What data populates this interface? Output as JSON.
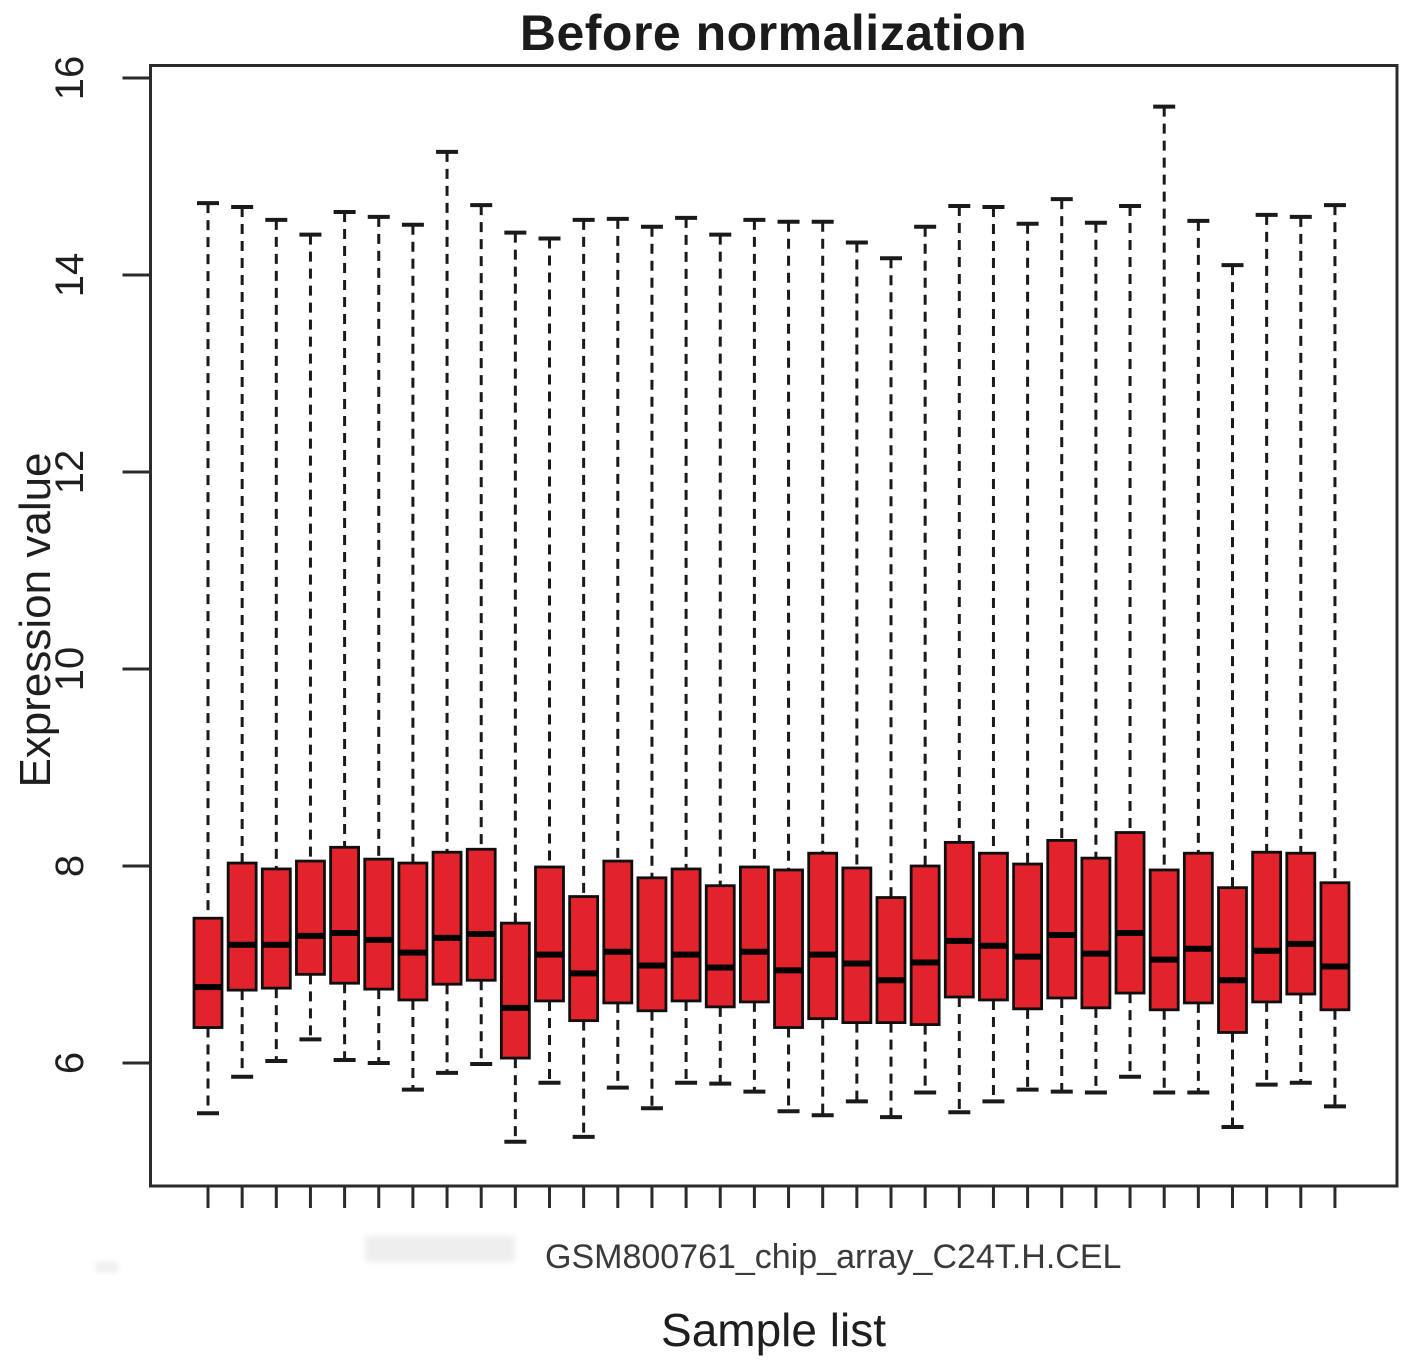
{
  "chart_data": {
    "type": "boxplot",
    "title": "Before normalization",
    "xlabel": "Sample list",
    "ylabel": "Expression value",
    "x_tick_label": "GSM800761_chip_array_C24T.H.CEL",
    "ylim": [
      4.8,
      16.2
    ],
    "yticks": [
      6,
      8,
      10,
      12,
      14,
      16
    ],
    "grid": "off",
    "legend": "none",
    "n_boxes": 34,
    "box_color": "#e2232b",
    "median_color": "#000000",
    "whisker_style": "dashed",
    "boxes": [
      {
        "low": 5.49,
        "q1": 6.36,
        "median": 6.77,
        "q3": 7.47,
        "high": 14.73
      },
      {
        "low": 5.86,
        "q1": 6.74,
        "median": 7.2,
        "q3": 8.03,
        "high": 14.69
      },
      {
        "low": 6.02,
        "q1": 6.76,
        "median": 7.2,
        "q3": 7.97,
        "high": 14.56
      },
      {
        "low": 6.24,
        "q1": 6.9,
        "median": 7.29,
        "q3": 8.05,
        "high": 14.41
      },
      {
        "low": 6.03,
        "q1": 6.81,
        "median": 7.32,
        "q3": 8.19,
        "high": 14.64
      },
      {
        "low": 6.0,
        "q1": 6.75,
        "median": 7.25,
        "q3": 8.07,
        "high": 14.59
      },
      {
        "low": 5.73,
        "q1": 6.64,
        "median": 7.12,
        "q3": 8.03,
        "high": 14.51
      },
      {
        "low": 5.9,
        "q1": 6.8,
        "median": 7.27,
        "q3": 8.14,
        "high": 15.25
      },
      {
        "low": 5.99,
        "q1": 6.84,
        "median": 7.31,
        "q3": 8.17,
        "high": 14.71
      },
      {
        "low": 5.2,
        "q1": 6.05,
        "median": 6.56,
        "q3": 7.42,
        "high": 14.43
      },
      {
        "low": 5.8,
        "q1": 6.63,
        "median": 7.1,
        "q3": 7.99,
        "high": 14.37
      },
      {
        "low": 5.25,
        "q1": 6.43,
        "median": 6.91,
        "q3": 7.69,
        "high": 14.56
      },
      {
        "low": 5.75,
        "q1": 6.61,
        "median": 7.13,
        "q3": 8.05,
        "high": 14.57
      },
      {
        "low": 5.54,
        "q1": 6.53,
        "median": 6.99,
        "q3": 7.88,
        "high": 14.49
      },
      {
        "low": 5.8,
        "q1": 6.63,
        "median": 7.1,
        "q3": 7.97,
        "high": 14.58
      },
      {
        "low": 5.79,
        "q1": 6.57,
        "median": 6.97,
        "q3": 7.8,
        "high": 14.41
      },
      {
        "low": 5.71,
        "q1": 6.62,
        "median": 7.13,
        "q3": 7.99,
        "high": 14.56
      },
      {
        "low": 5.51,
        "q1": 6.36,
        "median": 6.94,
        "q3": 7.96,
        "high": 14.54
      },
      {
        "low": 5.47,
        "q1": 6.45,
        "median": 7.1,
        "q3": 8.13,
        "high": 14.54
      },
      {
        "low": 5.61,
        "q1": 6.41,
        "median": 7.01,
        "q3": 7.98,
        "high": 14.33
      },
      {
        "low": 5.45,
        "q1": 6.41,
        "median": 6.84,
        "q3": 7.68,
        "high": 14.17
      },
      {
        "low": 5.7,
        "q1": 6.39,
        "median": 7.02,
        "q3": 8.0,
        "high": 14.49
      },
      {
        "low": 5.5,
        "q1": 6.67,
        "median": 7.24,
        "q3": 8.24,
        "high": 14.7
      },
      {
        "low": 5.61,
        "q1": 6.64,
        "median": 7.19,
        "q3": 8.13,
        "high": 14.69
      },
      {
        "low": 5.73,
        "q1": 6.55,
        "median": 7.08,
        "q3": 8.02,
        "high": 14.52
      },
      {
        "low": 5.71,
        "q1": 6.66,
        "median": 7.3,
        "q3": 8.26,
        "high": 14.77
      },
      {
        "low": 5.7,
        "q1": 6.56,
        "median": 7.11,
        "q3": 8.08,
        "high": 14.53
      },
      {
        "low": 5.86,
        "q1": 6.71,
        "median": 7.32,
        "q3": 8.34,
        "high": 14.7
      },
      {
        "low": 5.7,
        "q1": 6.54,
        "median": 7.05,
        "q3": 7.96,
        "high": 15.71
      },
      {
        "low": 5.7,
        "q1": 6.61,
        "median": 7.16,
        "q3": 8.13,
        "high": 14.55
      },
      {
        "low": 5.35,
        "q1": 6.31,
        "median": 6.84,
        "q3": 7.78,
        "high": 14.1
      },
      {
        "low": 5.78,
        "q1": 6.62,
        "median": 7.14,
        "q3": 8.14,
        "high": 14.61
      },
      {
        "low": 5.8,
        "q1": 6.7,
        "median": 7.21,
        "q3": 8.13,
        "high": 14.59
      },
      {
        "low": 5.56,
        "q1": 6.54,
        "median": 6.98,
        "q3": 7.83,
        "high": 14.71
      }
    ]
  }
}
